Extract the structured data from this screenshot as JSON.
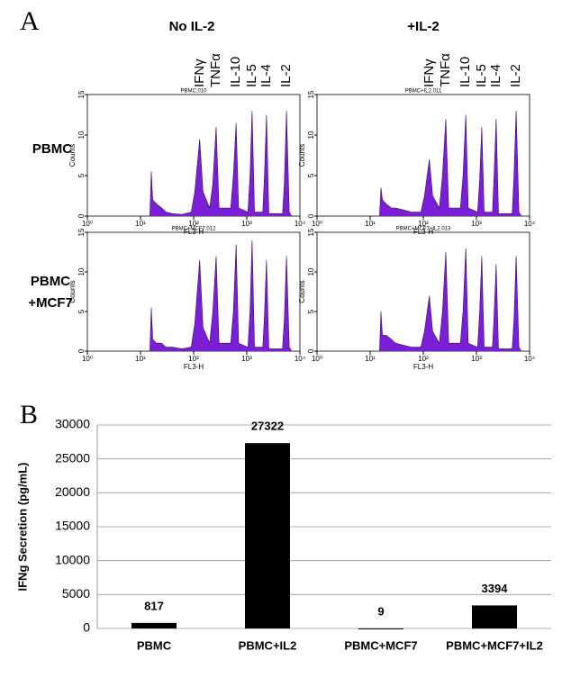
{
  "panel_labels": [
    "A",
    "B"
  ],
  "column_headers": [
    "No IL-2",
    "+IL-2"
  ],
  "row_labels": [
    [
      "PBMC"
    ],
    [
      "PBMC",
      "+MCF7"
    ]
  ],
  "cytokines": [
    "IFNγ",
    "TNFα",
    "IL-10",
    "IL-5",
    "IL-4",
    "IL-2"
  ],
  "chart_data": [
    {
      "type": "histogram",
      "subtitle": "PBMC.010",
      "xlabel": "FL3-H",
      "ylabel": "Counts",
      "xlog": true,
      "color": "#7b1fd6",
      "xlim": [
        1,
        10000
      ],
      "xticks": [
        {
          "value": 1,
          "label": "10⁰"
        },
        {
          "value": 10,
          "label": "10¹"
        },
        {
          "value": 100,
          "label": "10²"
        },
        {
          "value": 1000,
          "label": "10³"
        },
        {
          "value": 10000,
          "label": "10⁴"
        }
      ],
      "ylim": [
        0,
        15
      ],
      "yticks": [
        0,
        5,
        10,
        15
      ],
      "x": [
        15,
        16,
        17,
        20,
        25,
        30,
        40,
        60,
        90,
        105,
        130,
        150,
        200,
        230,
        265,
        300,
        500,
        560,
        630,
        700,
        1050,
        1150,
        1260,
        1400,
        2000,
        2150,
        2350,
        2600,
        4700,
        5100,
        5600,
        6300,
        7000
      ],
      "values": [
        0,
        5.5,
        2,
        1.5,
        1,
        0.5,
        0.3,
        0.2,
        0.5,
        3,
        9.5,
        3,
        1,
        4,
        11,
        1,
        1,
        5,
        11.5,
        1,
        0.5,
        5,
        13,
        0.5,
        0.5,
        5,
        12.5,
        0.3,
        0.3,
        4,
        13,
        0.5,
        0
      ]
    },
    {
      "type": "histogram",
      "subtitle": "PBMC+IL2.011",
      "xlabel": "FL3-H",
      "ylabel": "Counts",
      "xlog": true,
      "color": "#7b1fd6",
      "xlim": [
        1,
        10000
      ],
      "xticks": [
        {
          "value": 1,
          "label": "10⁰"
        },
        {
          "value": 10,
          "label": "10¹"
        },
        {
          "value": 100,
          "label": "10²"
        },
        {
          "value": 1000,
          "label": "10³"
        },
        {
          "value": 10000,
          "label": "10⁴"
        }
      ],
      "ylim": [
        0,
        15
      ],
      "yticks": [
        0,
        5,
        10,
        15
      ],
      "x": [
        15,
        16,
        17,
        20,
        25,
        30,
        40,
        60,
        90,
        105,
        130,
        150,
        200,
        230,
        265,
        300,
        500,
        560,
        630,
        700,
        1050,
        1150,
        1260,
        1400,
        2000,
        2150,
        2350,
        2600,
        4700,
        5100,
        5600,
        6300,
        7000
      ],
      "values": [
        0,
        3.5,
        2,
        1.5,
        1,
        1,
        0.8,
        0.5,
        0.5,
        2.5,
        7,
        2.5,
        1,
        5,
        12,
        1,
        1,
        5,
        12.5,
        1,
        0.5,
        4.5,
        11,
        0.5,
        0.5,
        5,
        12,
        0.3,
        0.3,
        5,
        13,
        0.5,
        0
      ]
    },
    {
      "type": "histogram",
      "subtitle": "PBMC+MCF7.012",
      "xlabel": "FL3-H",
      "ylabel": "Counts",
      "xlog": true,
      "color": "#7b1fd6",
      "xlim": [
        1,
        10000
      ],
      "xticks": [
        {
          "value": 1,
          "label": "10⁰"
        },
        {
          "value": 10,
          "label": "10¹"
        },
        {
          "value": 100,
          "label": "10²"
        },
        {
          "value": 1000,
          "label": "10³"
        },
        {
          "value": 10000,
          "label": "10⁴"
        }
      ],
      "ylim": [
        0,
        15
      ],
      "yticks": [
        0,
        5,
        10,
        15
      ],
      "x": [
        15,
        16,
        17,
        20,
        25,
        30,
        40,
        60,
        90,
        105,
        130,
        150,
        200,
        230,
        265,
        300,
        500,
        560,
        630,
        700,
        1050,
        1150,
        1260,
        1400,
        2000,
        2150,
        2350,
        2600,
        4700,
        5100,
        5600,
        6300,
        7000
      ],
      "values": [
        0,
        5.5,
        1.5,
        1,
        1,
        0.5,
        0.5,
        0.3,
        0.5,
        3.5,
        11.5,
        3,
        1,
        5,
        12,
        1,
        1,
        5,
        13.5,
        1,
        0.5,
        5,
        14,
        0.5,
        0.5,
        4.5,
        11.5,
        0.3,
        0.3,
        4,
        12,
        0.5,
        0
      ]
    },
    {
      "type": "histogram",
      "subtitle": "PBMC+MCF7+IL2.013",
      "xlabel": "FL3-H",
      "ylabel": "Counts",
      "xlog": true,
      "color": "#7b1fd6",
      "xlim": [
        1,
        10000
      ],
      "xticks": [
        {
          "value": 1,
          "label": "10⁰"
        },
        {
          "value": 10,
          "label": "10¹"
        },
        {
          "value": 100,
          "label": "10²"
        },
        {
          "value": 1000,
          "label": "10³"
        },
        {
          "value": 10000,
          "label": "10⁴"
        }
      ],
      "ylim": [
        0,
        15
      ],
      "yticks": [
        0,
        5,
        10,
        15
      ],
      "x": [
        15,
        16,
        17,
        20,
        25,
        30,
        40,
        60,
        90,
        105,
        130,
        150,
        200,
        230,
        265,
        300,
        500,
        560,
        630,
        700,
        1050,
        1150,
        1260,
        1400,
        2000,
        2150,
        2350,
        2600,
        4700,
        5100,
        5600,
        6300,
        7000
      ],
      "values": [
        0,
        5,
        2,
        2,
        1.5,
        1,
        0.8,
        0.5,
        0.5,
        2.5,
        7,
        2.5,
        1,
        5,
        12.5,
        1,
        1,
        5,
        13,
        1,
        0.5,
        5,
        12,
        0.5,
        0.5,
        4.5,
        11,
        0.3,
        0.3,
        4,
        12,
        0.5,
        0
      ]
    },
    {
      "type": "bar",
      "ylabel": "IFNg Secretion (pg/mL)",
      "color": "#000000",
      "grid": true,
      "categories": [
        "PBMC",
        "PBMC+IL2",
        "PBMC+MCF7",
        "PBMC+MCF7+IL2"
      ],
      "values": [
        817,
        27322,
        9,
        3394
      ],
      "ylim": [
        0,
        30000
      ],
      "yticks": [
        0,
        5000,
        10000,
        15000,
        20000,
        25000,
        30000
      ]
    }
  ]
}
